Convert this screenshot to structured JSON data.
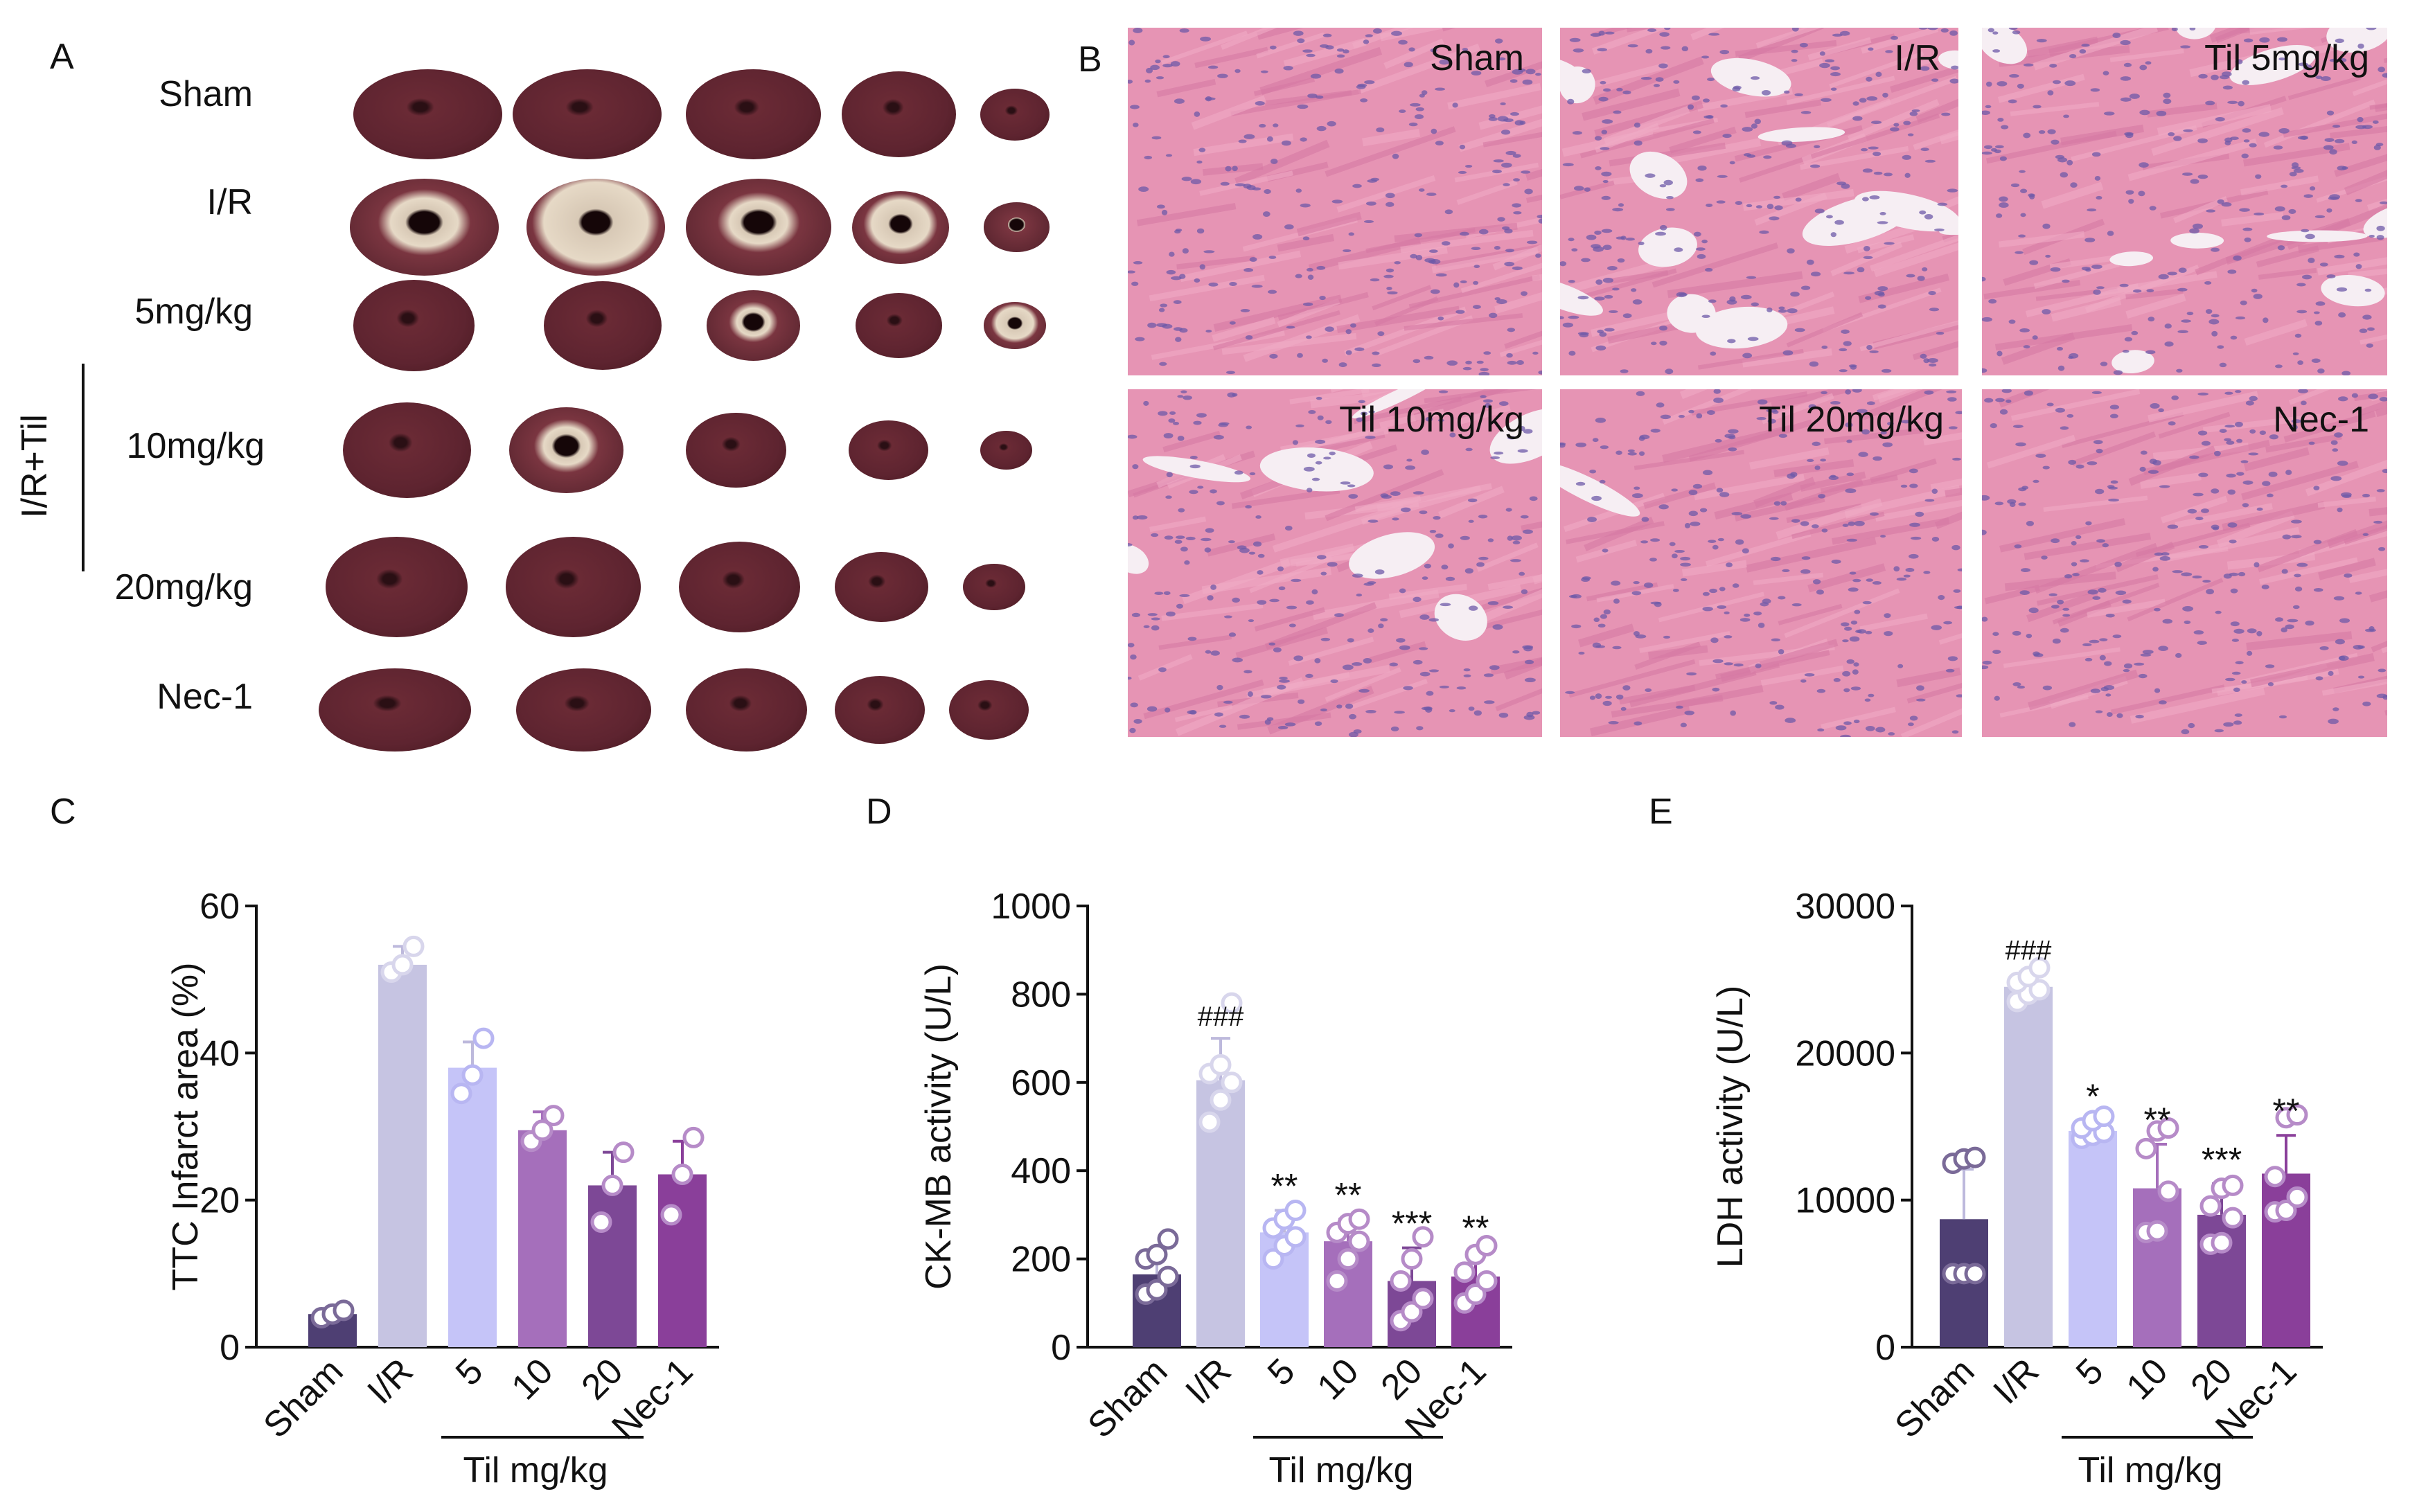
{
  "panels": {
    "A": {
      "letter": "A",
      "rows": [
        "Sham",
        "I/R",
        "5mg/kg",
        "10mg/kg",
        "20mg/kg",
        "Nec-1"
      ],
      "group_label": "I/R+Til"
    },
    "B": {
      "letter": "B",
      "images": [
        "Sham",
        "I/R",
        "Til 5mg/kg",
        "Til 10mg/kg",
        "Til 20mg/kg",
        "Nec-1"
      ]
    },
    "C": {
      "letter": "C"
    },
    "D": {
      "letter": "D"
    },
    "E": {
      "letter": "E"
    }
  },
  "chart_data": [
    {
      "type": "bar",
      "panel": "C",
      "categories": [
        "Sham",
        "I/R",
        "5",
        "10",
        "20",
        "Nec-1"
      ],
      "group_label": "Til mg/kg",
      "ylabel": "TTC Infarct area (%)",
      "ylim": [
        0,
        60
      ],
      "yticks": [
        0,
        20,
        40,
        60
      ],
      "values": [
        4.5,
        52,
        38,
        29.5,
        22,
        23.5
      ],
      "errors": [
        0.8,
        2.5,
        3.5,
        2.5,
        4.5,
        4.5
      ],
      "points": [
        [
          4,
          4.5,
          5
        ],
        [
          51,
          52,
          54.5
        ],
        [
          34.5,
          37,
          42
        ],
        [
          28,
          29.5,
          31.5
        ],
        [
          17,
          22,
          26.5
        ],
        [
          18,
          23.5,
          28.5
        ]
      ],
      "annotations": [
        "",
        "",
        "",
        "",
        "",
        ""
      ],
      "colors": [
        "#4e3f73",
        "#c6c4e2",
        "#c5c4f8",
        "#a56fbb",
        "#7d4896",
        "#8a3f9a"
      ]
    },
    {
      "type": "bar",
      "panel": "D",
      "categories": [
        "Sham",
        "I/R",
        "5",
        "10",
        "20",
        "Nec-1"
      ],
      "group_label": "Til mg/kg",
      "ylabel": "CK-MB activity (U/L)",
      "ylim": [
        0,
        1000
      ],
      "yticks": [
        0,
        200,
        400,
        600,
        800,
        1000
      ],
      "values": [
        165,
        605,
        260,
        240,
        150,
        160
      ],
      "errors": [
        55,
        95,
        50,
        50,
        75,
        55
      ],
      "points": [
        [
          120,
          130,
          160,
          200,
          210,
          245
        ],
        [
          510,
          560,
          600,
          620,
          640,
          780
        ],
        [
          200,
          230,
          250,
          270,
          290,
          310
        ],
        [
          150,
          200,
          240,
          260,
          280,
          290
        ],
        [
          60,
          80,
          110,
          150,
          200,
          250
        ],
        [
          100,
          120,
          150,
          170,
          210,
          230
        ]
      ],
      "annotations": [
        "",
        "###",
        "**",
        "**",
        "***",
        "**"
      ],
      "colors": [
        "#4e3f73",
        "#c6c4e2",
        "#c5c4f8",
        "#a56fbb",
        "#7d4896",
        "#8a3f9a"
      ]
    },
    {
      "type": "bar",
      "panel": "E",
      "categories": [
        "Sham",
        "I/R",
        "5",
        "10",
        "20",
        "Nec-1"
      ],
      "group_label": "Til mg/kg",
      "ylabel": "LDH activity (U/L)",
      "ylim": [
        0,
        30000
      ],
      "yticks": [
        0,
        10000,
        20000,
        30000
      ],
      "values": [
        8700,
        24500,
        14700,
        10800,
        9000,
        11800
      ],
      "errors": [
        3400,
        1000,
        700,
        3000,
        2100,
        2600
      ],
      "points": [
        [
          5000,
          5000,
          5000,
          12500,
          12800,
          12900
        ],
        [
          23500,
          24000,
          24300,
          24800,
          25200,
          25800
        ],
        [
          14200,
          14400,
          14600,
          14900,
          15400,
          15700
        ],
        [
          7800,
          7900,
          10600,
          13500,
          14700,
          14900
        ],
        [
          7000,
          7100,
          8800,
          9600,
          10800,
          11000
        ],
        [
          9200,
          9300,
          10200,
          11600,
          15600,
          15800
        ]
      ],
      "annotations": [
        "",
        "###",
        "*",
        "**",
        "***",
        "**"
      ],
      "colors": [
        "#4e3f73",
        "#c6c4e2",
        "#c5c4f8",
        "#a56fbb",
        "#7d4896",
        "#8a3f9a"
      ]
    }
  ]
}
